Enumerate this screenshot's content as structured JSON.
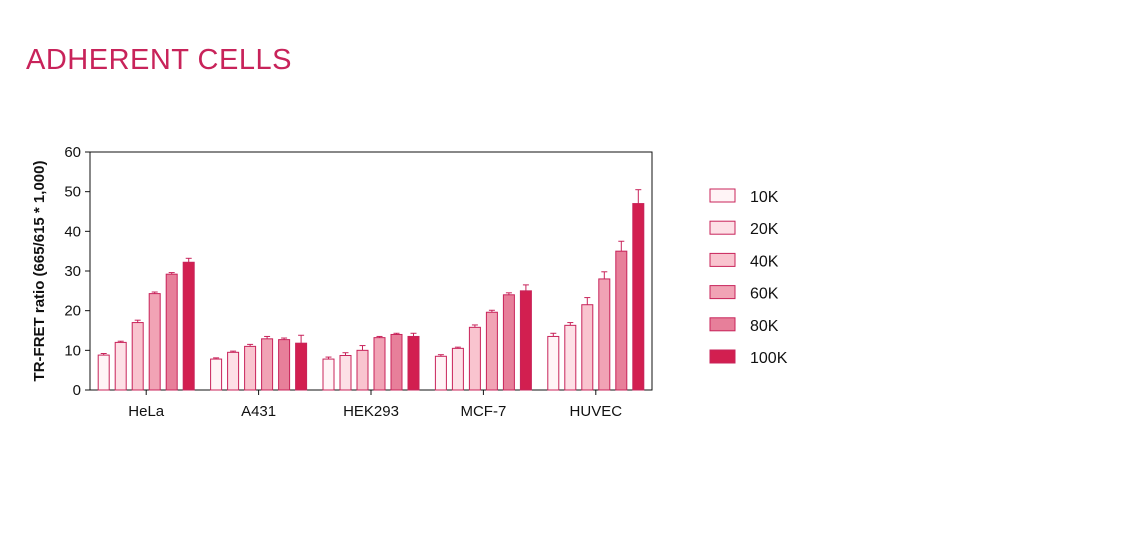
{
  "page": {
    "title": "ADHERENT CELLS"
  },
  "colors": {
    "stroke": "#c8235a",
    "axis": "#111111",
    "title": "#c8235a",
    "series": [
      "#fff4f6",
      "#fde0e6",
      "#f9c4cf",
      "#f1a3b5",
      "#e77f9a",
      "#d21f50"
    ]
  },
  "chart_data": {
    "type": "bar",
    "title": "",
    "xlabel": "",
    "ylabel": "TR-FRET ratio (665/615 * 1,000)",
    "ylim": [
      0,
      60
    ],
    "yticks": [
      0,
      10,
      20,
      30,
      40,
      50,
      60
    ],
    "categories": [
      "HeLa",
      "A431",
      "HEK293",
      "MCF-7",
      "HUVEC"
    ],
    "legend_position": "right",
    "grid": false,
    "series": [
      {
        "name": "10K",
        "values": [
          8.8,
          7.8,
          7.8,
          8.5,
          13.5
        ],
        "errors": [
          0.4,
          0.3,
          0.5,
          0.4,
          0.8
        ]
      },
      {
        "name": "20K",
        "values": [
          12.0,
          9.5,
          8.7,
          10.5,
          16.3
        ],
        "errors": [
          0.3,
          0.3,
          0.7,
          0.3,
          0.7
        ]
      },
      {
        "name": "40K",
        "values": [
          17.0,
          11.0,
          10.0,
          15.8,
          21.5
        ],
        "errors": [
          0.6,
          0.5,
          1.2,
          0.6,
          1.8
        ]
      },
      {
        "name": "60K",
        "values": [
          24.3,
          12.9,
          13.2,
          19.6,
          28.0
        ],
        "errors": [
          0.4,
          0.6,
          0.3,
          0.5,
          1.8
        ]
      },
      {
        "name": "80K",
        "values": [
          29.2,
          12.7,
          14.0,
          24.0,
          35.0
        ],
        "errors": [
          0.4,
          0.4,
          0.3,
          0.5,
          2.5
        ]
      },
      {
        "name": "100K",
        "values": [
          32.2,
          11.8,
          13.5,
          25.0,
          47.0
        ],
        "errors": [
          1.0,
          2.0,
          0.8,
          1.5,
          3.5
        ]
      }
    ]
  }
}
